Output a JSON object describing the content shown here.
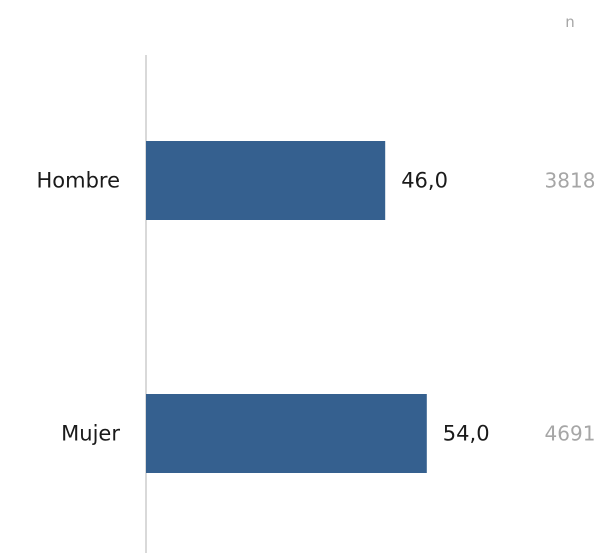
{
  "chart_data": {
    "type": "bar",
    "orientation": "horizontal",
    "categories": [
      "Hombre",
      "Mujer"
    ],
    "values": [
      46.0,
      54.0
    ],
    "value_labels": [
      "46,0",
      "54,0"
    ],
    "n_header": "n",
    "n_values": [
      "3818",
      "4691"
    ],
    "xlim": [
      0,
      100
    ],
    "bar_color": "#35608f",
    "axis_color": "#d9d9d9",
    "n_color": "#a6a6a6",
    "grid": false
  }
}
